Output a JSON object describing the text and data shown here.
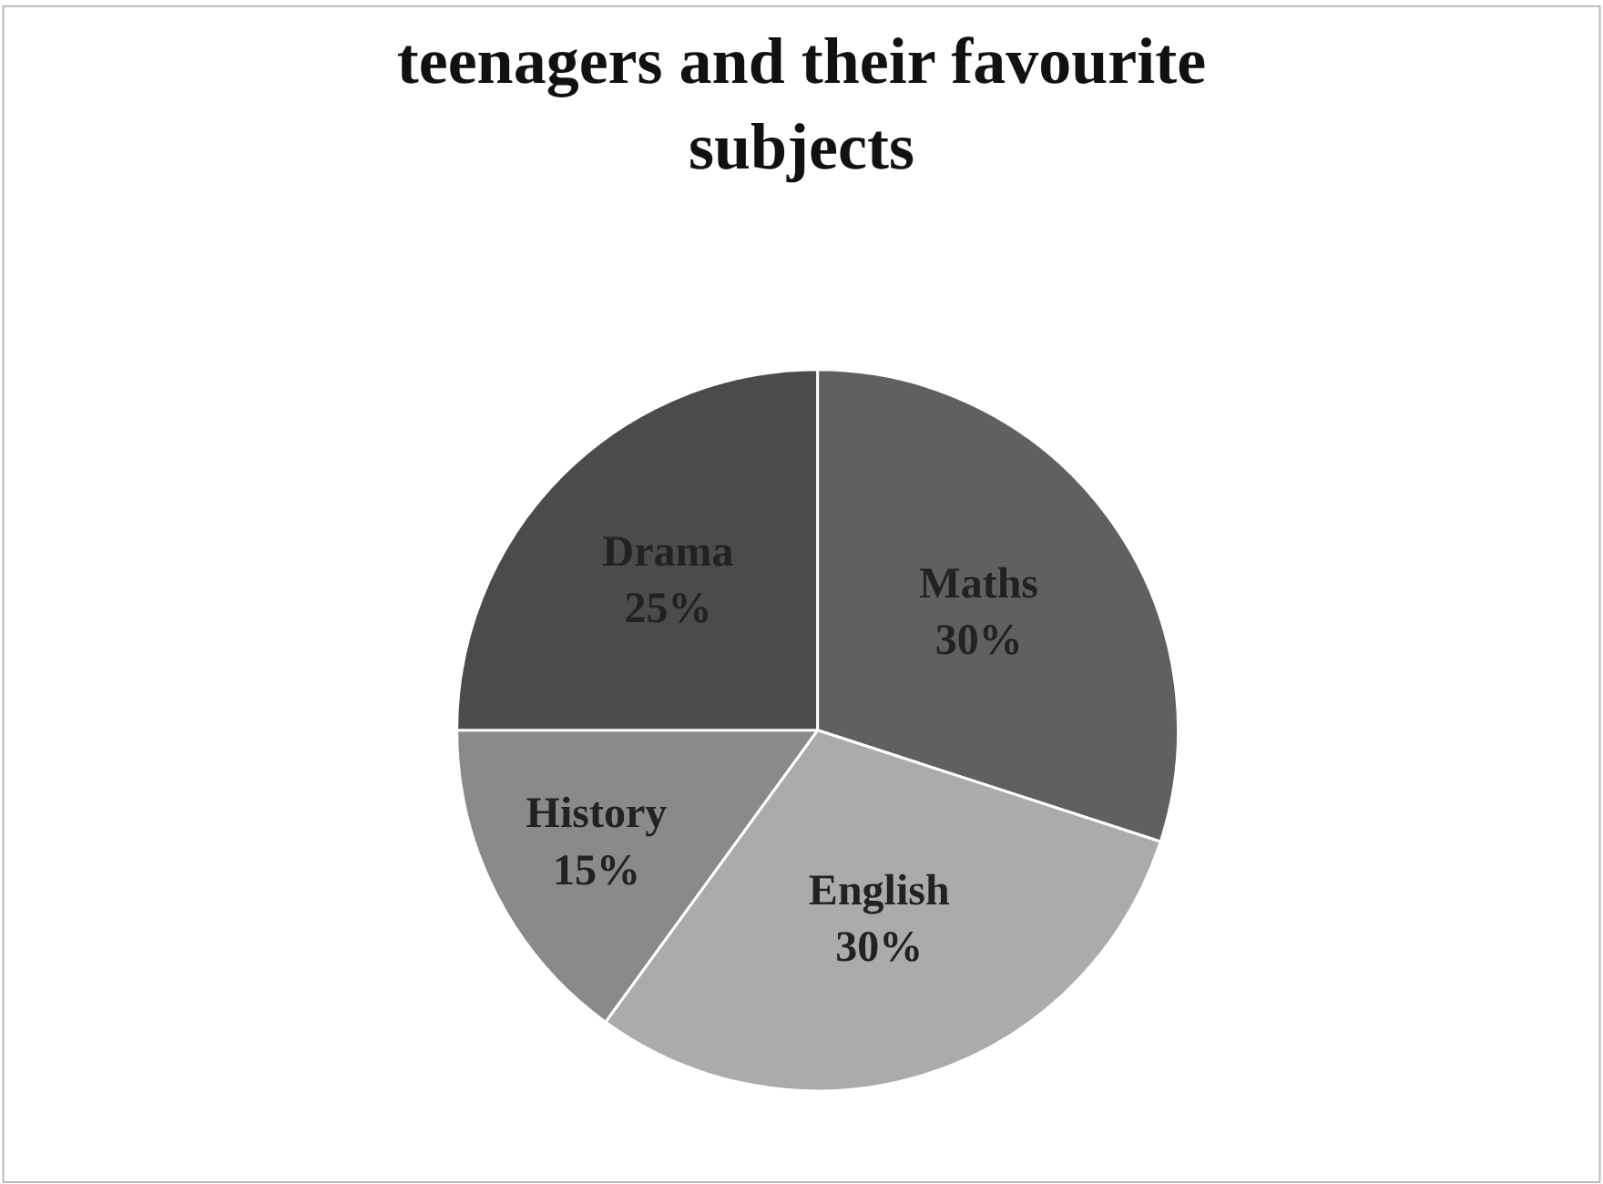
{
  "chart_data": {
    "type": "pie",
    "title": "teenagers and their favourite subjects",
    "categories": [
      "Maths",
      "English",
      "History",
      "Drama"
    ],
    "values": [
      30,
      30,
      15,
      25
    ],
    "value_labels": [
      "30%",
      "30%",
      "15%",
      "25%"
    ],
    "colors": [
      "#606060",
      "#ababab",
      "#8a8a8a",
      "#4b4b4b"
    ],
    "legend": false
  }
}
